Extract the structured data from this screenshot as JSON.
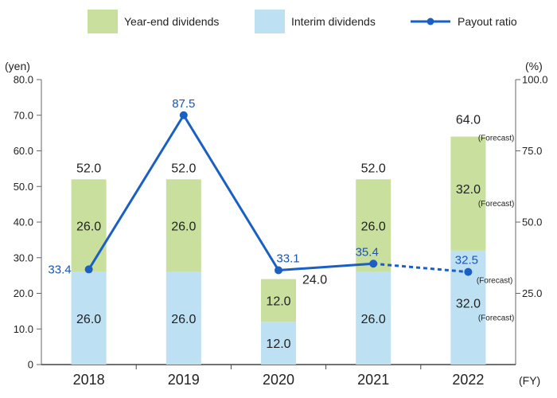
{
  "chart_data": {
    "type": "bar",
    "stacked": true,
    "categories": [
      "2018",
      "2019",
      "2020",
      "2021",
      "2022"
    ],
    "x_unit_label": "(FY)",
    "y_left": {
      "unit_label": "(yen)",
      "range": [
        0,
        80
      ],
      "ticks": [
        "0",
        "10.0",
        "20.0",
        "30.0",
        "40.0",
        "50.0",
        "60.0",
        "70.0",
        "80.0"
      ],
      "tick_values": [
        0,
        10,
        20,
        30,
        40,
        50,
        60,
        70,
        80
      ]
    },
    "y_right": {
      "unit_label": "(%)",
      "range": [
        0,
        100
      ],
      "ticks": [
        "25.0",
        "50.0",
        "75.0",
        "100.0"
      ],
      "tick_values": [
        25,
        50,
        75,
        100
      ]
    },
    "series": [
      {
        "name": "Interim dividends",
        "kind": "bar",
        "color": "#bde0f2",
        "values": [
          26,
          26,
          12,
          26,
          32
        ],
        "labels": [
          "26.0",
          "26.0",
          "12.0",
          "26.0",
          "32.0"
        ]
      },
      {
        "name": "Year-end dividends",
        "kind": "bar",
        "color": "#c8df9e",
        "values": [
          26,
          26,
          12,
          26,
          32
        ],
        "labels": [
          "26.0",
          "26.0",
          "12.0",
          "26.0",
          "32.0"
        ]
      },
      {
        "name": "Payout ratio",
        "kind": "line",
        "axis": "right",
        "color": "#1a5fc4",
        "values": [
          33.4,
          87.5,
          33.1,
          35.4,
          32.5
        ],
        "labels": [
          "33.4",
          "87.5",
          "33.1",
          "35.4",
          "32.5"
        ],
        "dashed_from_index": 3
      }
    ],
    "totals": [
      "52.0",
      "52.0",
      "24.0",
      "52.0",
      "64.0"
    ],
    "forecast_note": "(Forecast)",
    "forecast_index": 4,
    "legend": [
      "Year-end dividends",
      "Interim dividends",
      "Payout ratio"
    ],
    "legend_position": "top"
  }
}
